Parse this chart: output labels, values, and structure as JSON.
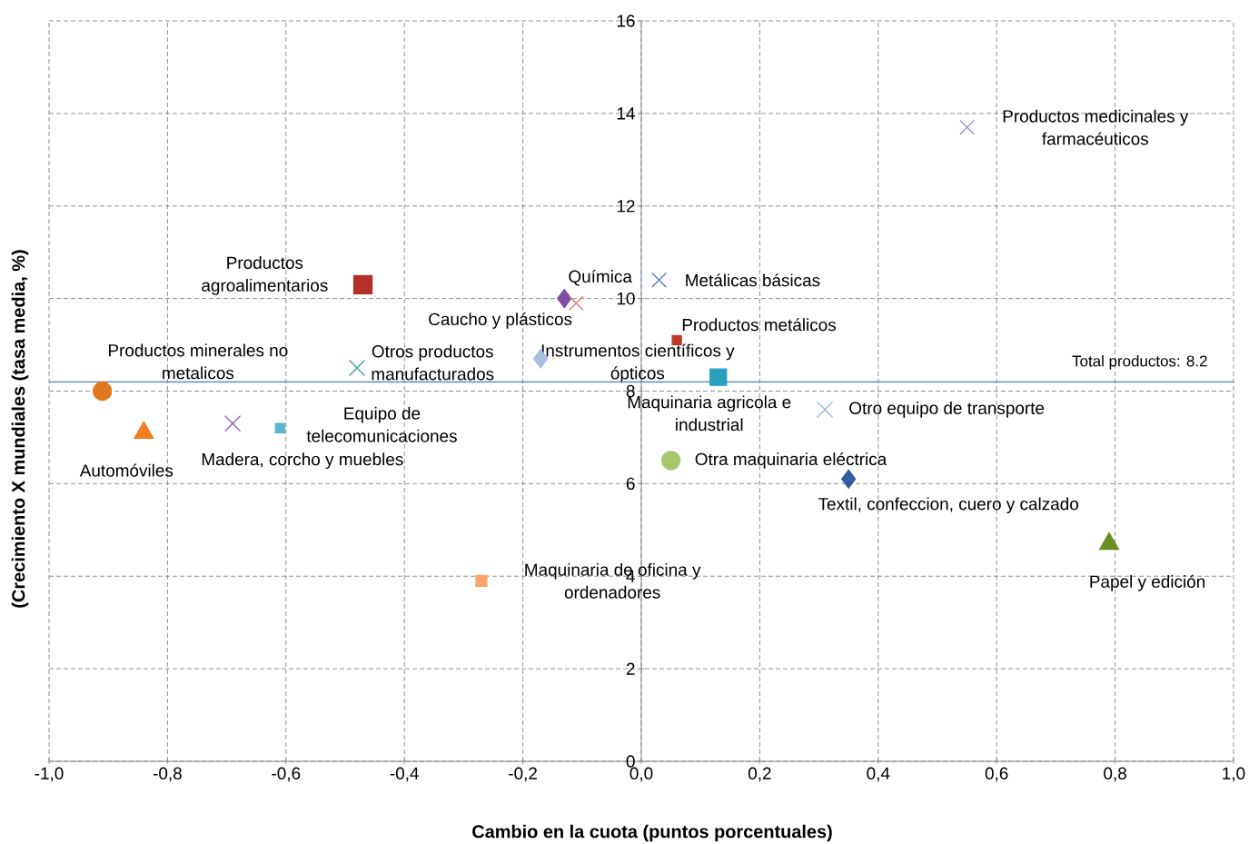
{
  "chart_data": {
    "type": "scatter",
    "xlabel": "Cambio en la cuota (puntos porcentuales)",
    "ylabel": "(Crecimiento X mundiales (tasa media, %)",
    "xlim": [
      -1,
      1
    ],
    "ylim": [
      0,
      16
    ],
    "xticks": [
      {
        "value": -1,
        "label": "-1,0"
      },
      {
        "value": -0.8,
        "label": "-0,8"
      },
      {
        "value": -0.6,
        "label": "-0,6"
      },
      {
        "value": -0.4,
        "label": "-0,4"
      },
      {
        "value": -0.2,
        "label": "-0,2"
      },
      {
        "value": 0,
        "label": "0,0"
      },
      {
        "value": 0.2,
        "label": "0,2"
      },
      {
        "value": 0.4,
        "label": "0,4"
      },
      {
        "value": 0.6,
        "label": "0,6"
      },
      {
        "value": 0.8,
        "label": "0,8"
      },
      {
        "value": 1,
        "label": "1,0"
      }
    ],
    "yticks": [
      0,
      2,
      4,
      6,
      8,
      10,
      12,
      14,
      16
    ],
    "grid": true,
    "ref_lines": [
      {
        "axis": "y",
        "value": 8.2,
        "label": "Total productos: 8.2",
        "color": "#4a7ebb",
        "line_style": "solid"
      }
    ],
    "series": [
      {
        "name": "Productos medicinales y farmacéuticos",
        "color": "#9f8cc4",
        "marker": "cross",
        "x": [
          0.55
        ],
        "values": [
          13.7
        ]
      },
      {
        "name": "Productos agroalimentarios",
        "color": "#b3302b",
        "marker": "square",
        "x": [
          -0.47
        ],
        "values": [
          10.3
        ]
      },
      {
        "name": "Química",
        "color": "#7e4fa0",
        "marker": "diamond",
        "x": [
          -0.13
        ],
        "values": [
          10.0
        ]
      },
      {
        "name": "Caucho y plásticos",
        "color": "#e07a74",
        "marker": "cross",
        "x": [
          -0.11
        ],
        "values": [
          9.9
        ]
      },
      {
        "name": "Metálicas básicas",
        "color": "#4f7fc0",
        "marker": "cross",
        "x": [
          0.03
        ],
        "values": [
          10.4
        ]
      },
      {
        "name": "Productos metálicos",
        "color": "#c0392b",
        "marker": "square",
        "x": [
          0.06
        ],
        "values": [
          9.1
        ]
      },
      {
        "name": "Instrumentos científicos y ópticos",
        "color": "#a9bde0",
        "marker": "diamond",
        "x": [
          -0.17
        ],
        "values": [
          8.7
        ]
      },
      {
        "name": "Maquinaria agricola e industrial",
        "color": "#2aa0c0",
        "marker": "square",
        "x": [
          0.13
        ],
        "values": [
          8.3
        ]
      },
      {
        "name": "Otro equipo de transporte",
        "color": "#8fb0dc",
        "marker": "cross",
        "x": [
          0.31
        ],
        "values": [
          7.6
        ]
      },
      {
        "name": "Otra maquinaria eléctrica",
        "color": "#a8c66c",
        "marker": "circle",
        "x": [
          0.05
        ],
        "values": [
          6.5
        ]
      },
      {
        "name": "Textil, confeccion, cuero y calzado",
        "color": "#2f5f9f",
        "marker": "diamond",
        "x": [
          0.35
        ],
        "values": [
          6.1
        ]
      },
      {
        "name": "Papel y edición",
        "color": "#6b8e23",
        "marker": "triangle",
        "x": [
          0.79
        ],
        "values": [
          4.7
        ]
      },
      {
        "name": "Maquinaria de oficina y ordenadores",
        "color": "#f2a66a",
        "marker": "square",
        "x": [
          -0.27
        ],
        "values": [
          3.9
        ]
      },
      {
        "name": "Madera, corcho y muebles",
        "color": "#7f5fa0",
        "marker": "cross",
        "x": [
          -0.69
        ],
        "values": [
          7.3
        ]
      },
      {
        "name": "Equipo de telecomunicaciones",
        "color": "#5ab4d0",
        "marker": "square",
        "x": [
          -0.61
        ],
        "values": [
          7.2
        ]
      },
      {
        "name": "Otros productos manufacturados",
        "color": "#3a9bb0",
        "marker": "cross",
        "x": [
          -0.48
        ],
        "values": [
          8.5
        ]
      },
      {
        "name": "Productos minerales no metalicos",
        "color": "#e07820",
        "marker": "circle",
        "x": [
          -0.91
        ],
        "values": [
          8.0
        ]
      },
      {
        "name": "Automóviles",
        "color": "#f07d22",
        "marker": "triangle",
        "x": [
          -0.84
        ],
        "values": [
          7.1
        ]
      }
    ]
  }
}
